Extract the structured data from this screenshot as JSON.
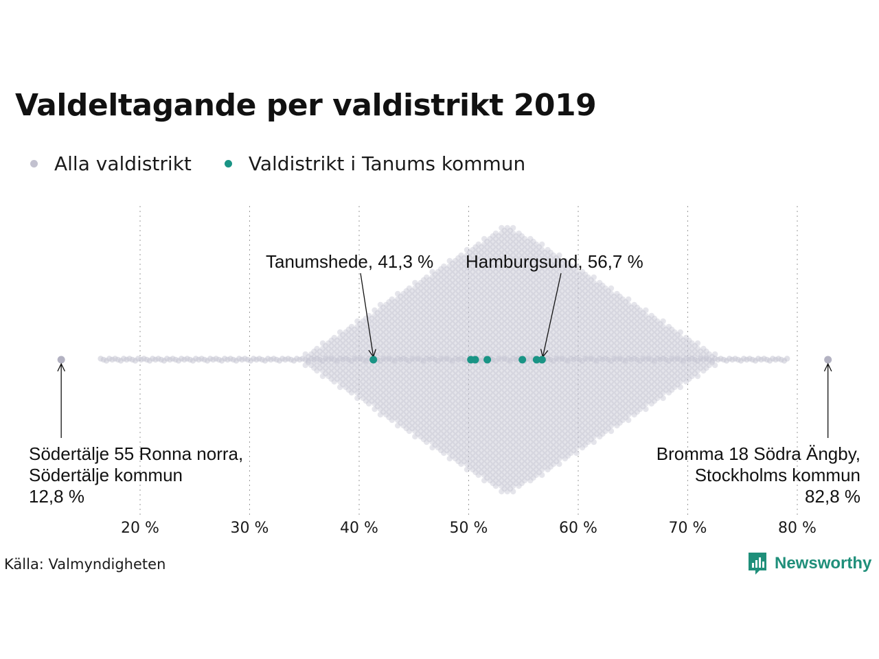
{
  "title": "Valdeltagande per valdistrikt 2019",
  "legend": [
    {
      "label": "Alla valdistrikt",
      "color": "#c2c1cf"
    },
    {
      "label": "Valdistrikt i Tanums kommun",
      "color": "#1a9485"
    }
  ],
  "source": "Källa: Valmyndigheten",
  "brand": {
    "name": "Newsworthy",
    "icon": "newsworthy-logo-icon",
    "color": "#1f8f7a"
  },
  "chart_data": {
    "type": "scatter",
    "title": "Valdeltagande per valdistrikt 2019",
    "xlabel": "",
    "ylabel": "",
    "xlim": [
      12,
      84
    ],
    "xticks": [
      20,
      30,
      40,
      50,
      60,
      70,
      80
    ],
    "tick_labels": [
      "20 %",
      "30 %",
      "40 %",
      "50 %",
      "60 %",
      "70 %",
      "80 %"
    ],
    "grid": "vertical dotted",
    "legend_position": "top-left",
    "series": [
      {
        "name": "Alla valdistrikt",
        "color": "#c2c1cf",
        "distribution": {
          "min": 12.8,
          "max": 82.8,
          "peak": 53.7
        }
      },
      {
        "name": "Valdistrikt i Tanums kommun",
        "color": "#1a9485",
        "values": [
          41.3,
          50.2,
          50.6,
          51.7,
          54.9,
          56.2,
          56.7
        ]
      }
    ],
    "annotations": [
      {
        "lines": [
          "Tanumshede, 41,3 %"
        ],
        "value": 41.3
      },
      {
        "lines": [
          "Hamburgsund, 56,7 %"
        ],
        "value": 56.7
      },
      {
        "lines": [
          "Södertälje 55 Ronna norra,",
          "Södertälje kommun",
          "12,8 %"
        ],
        "value": 12.8
      },
      {
        "lines": [
          "Bromma 18 Södra Ängby,",
          "Stockholms kommun",
          "82,8 %"
        ],
        "value": 82.8
      }
    ]
  }
}
